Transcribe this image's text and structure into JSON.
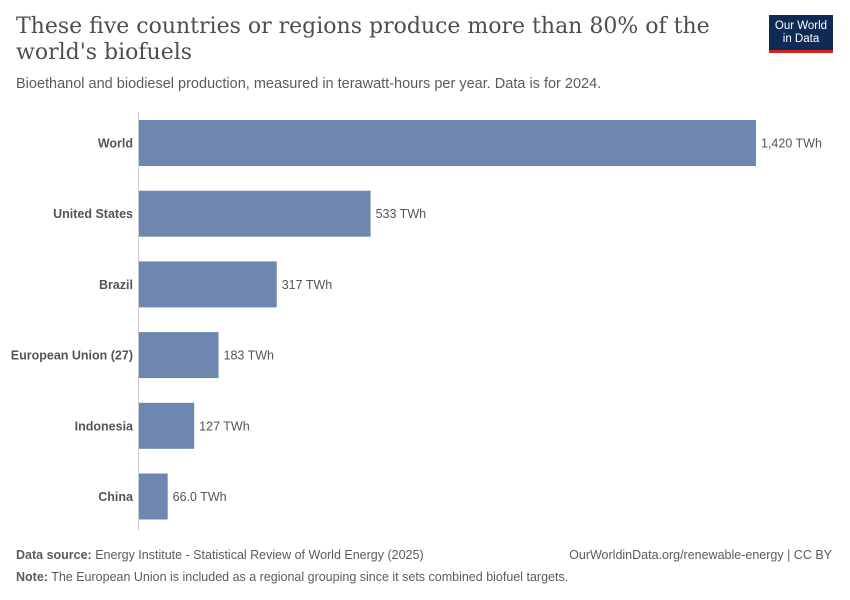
{
  "header": {
    "title": "These five countries or regions produce more than 80% of the world's biofuels",
    "subtitle": "Bioethanol and biodiesel production, measured in terawatt-hours per year. Data is for 2024.",
    "logo_line1": "Our World",
    "logo_line2": "in Data"
  },
  "chart_data": {
    "type": "bar",
    "orientation": "horizontal",
    "categories": [
      "World",
      "United States",
      "Brazil",
      "European Union (27)",
      "Indonesia",
      "China"
    ],
    "values": [
      1420,
      533,
      317,
      183,
      127,
      66.0
    ],
    "data_labels": [
      "1,420 TWh",
      "533 TWh",
      "317 TWh",
      "183 TWh",
      "127 TWh",
      "66.0 TWh"
    ],
    "unit": "TWh",
    "xlim": [
      0,
      1420
    ],
    "bar_color": "#6d87b0",
    "grid": false
  },
  "footer": {
    "source_label": "Data source:",
    "source_text": "Energy Institute - Statistical Review of World Energy (2025)",
    "url": "OurWorldinData.org/renewable-energy | CC BY",
    "note_label": "Note:",
    "note_text": "The European Union is included as a regional grouping since it sets combined biofuel targets."
  }
}
